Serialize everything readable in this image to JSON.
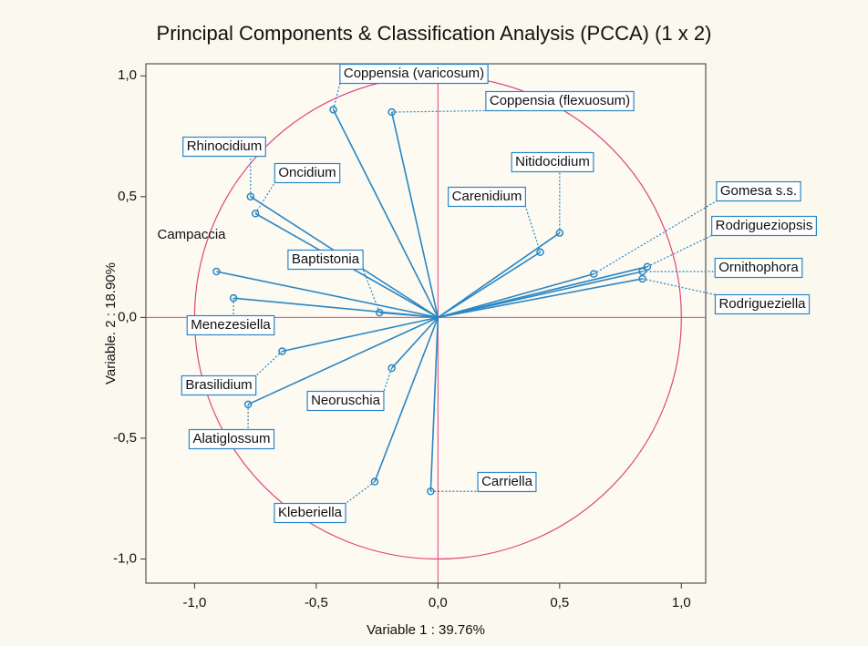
{
  "chart_data": {
    "type": "biplot",
    "title": "Principal Components & Classification Analysis (PCCA) (1 x 2)",
    "x_label": "Variable 1 : 39.76%",
    "y_label": "Variable. 2 : 18.90%",
    "xlim": [
      -1.2,
      1.1
    ],
    "ylim": [
      -1.1,
      1.05
    ],
    "xticks": [
      {
        "value": -1,
        "label": "-1,0"
      },
      {
        "value": -0.5,
        "label": "-0,5"
      },
      {
        "value": 0,
        "label": "0,0"
      },
      {
        "value": 0.5,
        "label": "0,5"
      },
      {
        "value": 1,
        "label": "1,0"
      }
    ],
    "yticks": [
      {
        "value": -1,
        "label": "-1,0"
      },
      {
        "value": -0.5,
        "label": "-0,5"
      },
      {
        "value": 0,
        "label": "0,0"
      },
      {
        "value": 0.5,
        "label": "0,5"
      },
      {
        "value": 1,
        "label": "1,0"
      }
    ],
    "color": "#2a86c4",
    "circle_color": "#e0457e",
    "labels": [
      "Coppensia (varicosum)",
      "Coppensia (flexuosum)",
      "Rhinocidium",
      "Oncidium",
      "Campaccia",
      "Baptistonia",
      "Menezesiella",
      "Brasilidium",
      "Alatiglossum",
      "Neoruschia",
      "Kleberiella",
      "Carriella",
      "Carenidium",
      "Nitidocidium",
      "Gomesa s.s.",
      "Rodrigueziopsis",
      "Ornithophora",
      "Rodrigueziella"
    ],
    "x": [
      -0.43,
      -0.19,
      -0.77,
      -0.75,
      -0.91,
      -0.24,
      -0.84,
      -0.64,
      -0.78,
      -0.19,
      -0.26,
      -0.03,
      0.42,
      0.5,
      0.64,
      0.86,
      0.84,
      0.84
    ],
    "y": [
      0.86,
      0.85,
      0.5,
      0.43,
      0.19,
      0.02,
      0.08,
      -0.14,
      -0.36,
      -0.21,
      -0.68,
      -0.72,
      0.27,
      0.35,
      0.18,
      0.21,
      0.19,
      0.16
    ]
  }
}
